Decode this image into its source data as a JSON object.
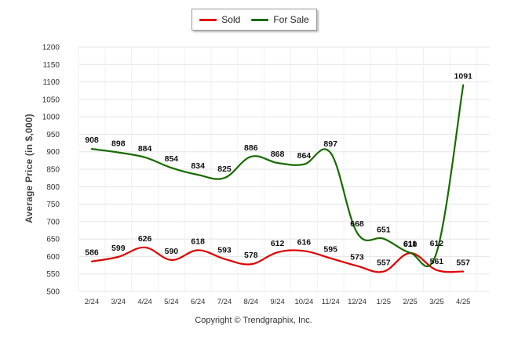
{
  "chart_data": {
    "type": "line",
    "categories": [
      "2/24",
      "3/24",
      "4/24",
      "5/24",
      "6/24",
      "7/24",
      "8/24",
      "9/24",
      "10/24",
      "11/24",
      "12/24",
      "1/25",
      "2/25",
      "3/25",
      "4/25"
    ],
    "series": [
      {
        "name": "Sold",
        "color": "#e00000",
        "values": [
          586,
          599,
          626,
          590,
          618,
          593,
          578,
          612,
          616,
          595,
          573,
          557,
          610,
          561,
          557
        ]
      },
      {
        "name": "For Sale",
        "color": "#1a6b00",
        "values": [
          908,
          898,
          884,
          854,
          834,
          825,
          886,
          868,
          864,
          897,
          668,
          651,
          611,
          612,
          1091
        ]
      }
    ],
    "ylabel": "Average Price (in $,000)",
    "ylim": [
      500,
      1200
    ],
    "yticks": [
      500,
      550,
      600,
      650,
      700,
      750,
      800,
      850,
      900,
      950,
      1000,
      1050,
      1100,
      1150,
      1200
    ],
    "grid": true,
    "legend_position": "top-center",
    "copyright": "Copyright © Trendgraphix, Inc."
  }
}
